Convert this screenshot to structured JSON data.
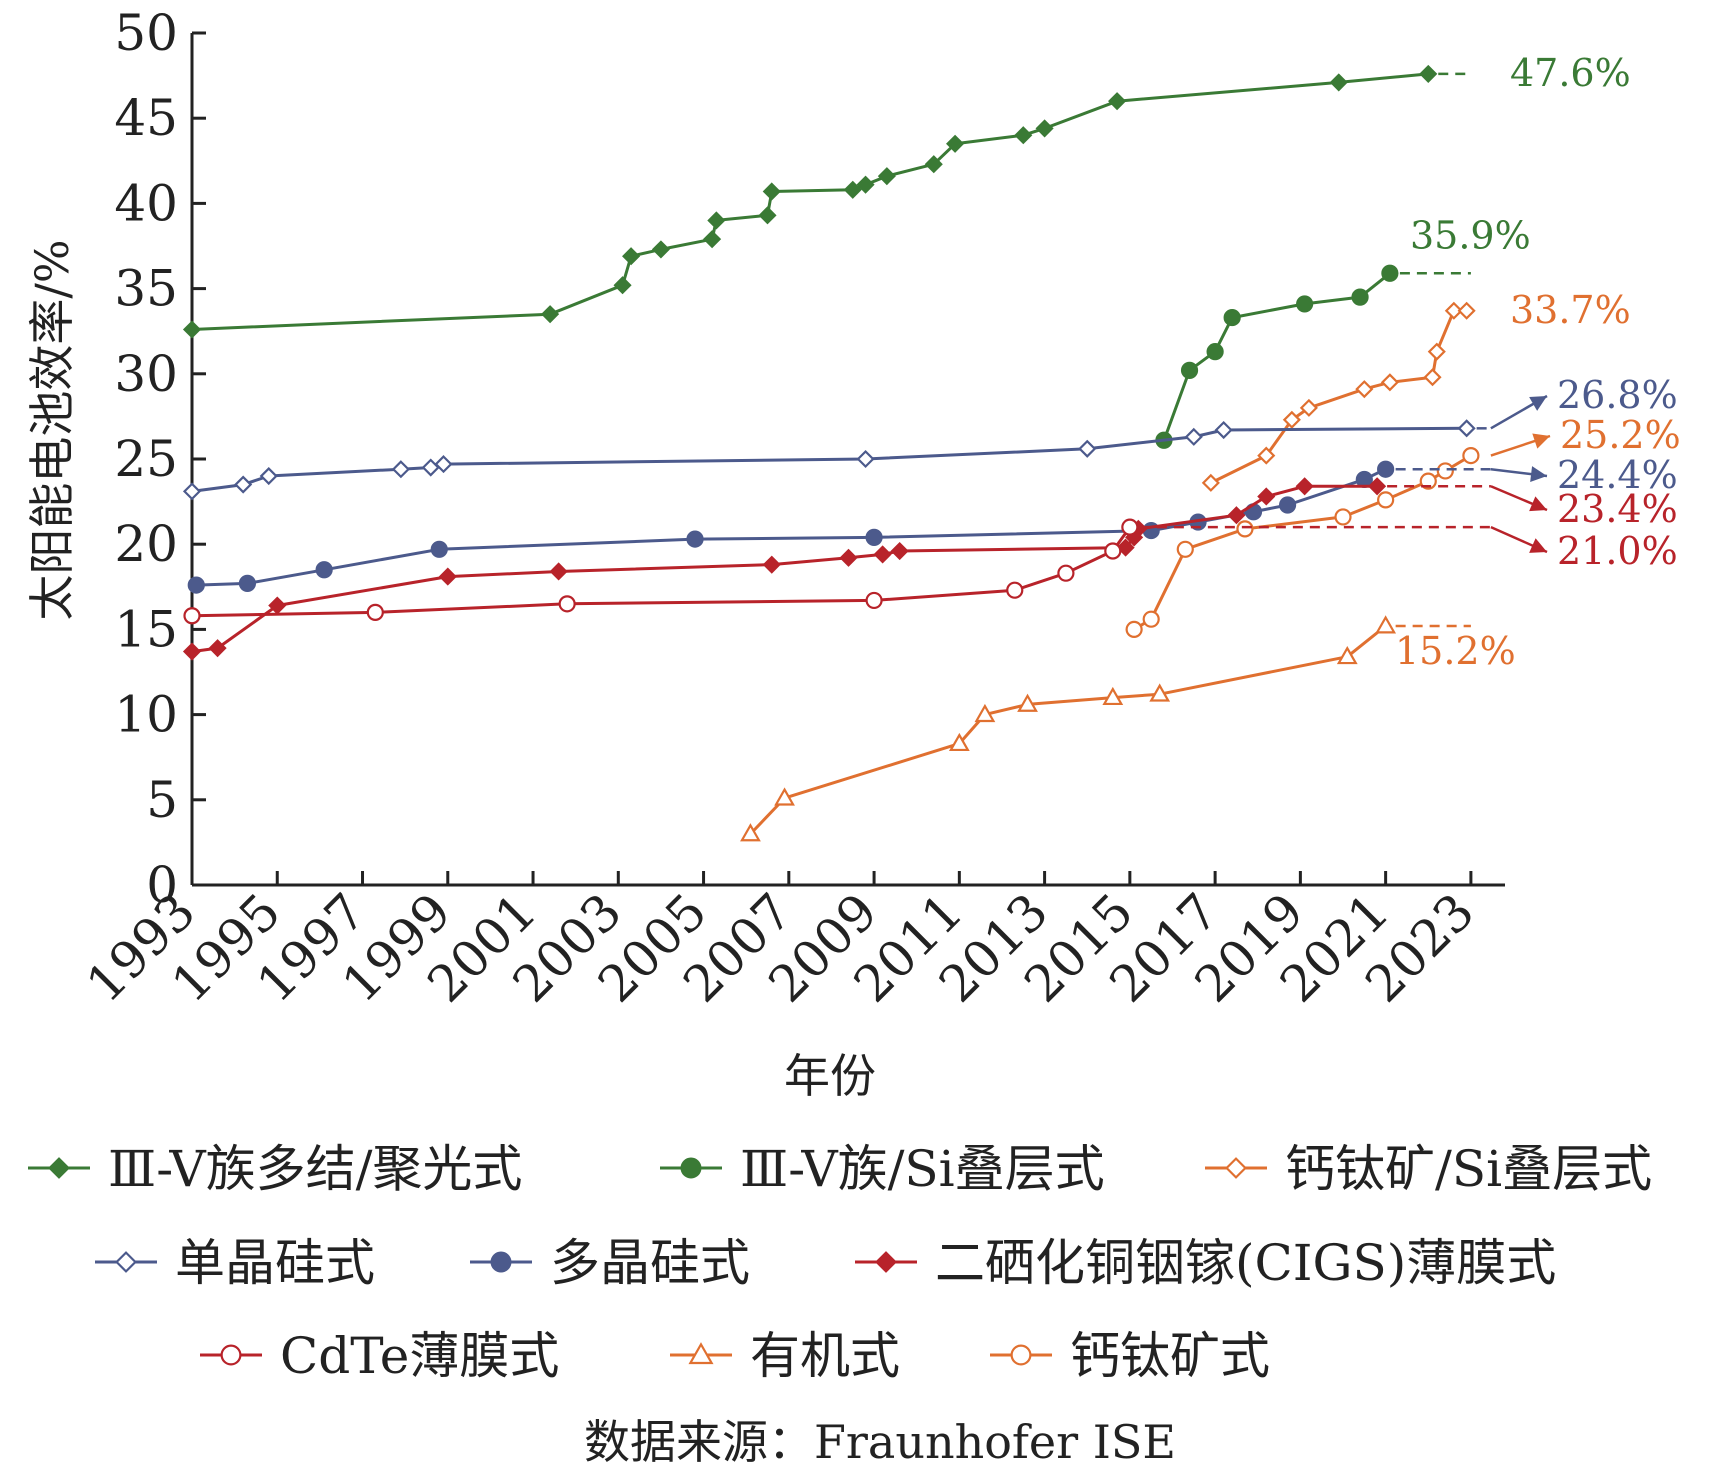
{
  "chart_data": {
    "type": "line",
    "title": "",
    "xlabel": "年份",
    "ylabel": "太阳能电池效率/%",
    "xlim": [
      1993,
      2023.8
    ],
    "ylim": [
      0,
      50
    ],
    "x_ticks": [
      "1993",
      "1995",
      "1997",
      "1999",
      "2001",
      "2003",
      "2005",
      "2007",
      "2009",
      "2011",
      "2013",
      "2015",
      "2017",
      "2019",
      "2021",
      "2023"
    ],
    "y_ticks": [
      "0",
      "5",
      "10",
      "15",
      "20",
      "25",
      "30",
      "35",
      "40",
      "45",
      "50"
    ],
    "legend_position": "bottom",
    "source": "数据来源：Fraunhofer ISE",
    "series": [
      {
        "name": "Ⅲ-V族多结/聚光式",
        "color": "#3a7a35",
        "marker": "diamond-filled",
        "points": [
          [
            1993.0,
            32.6
          ],
          [
            2001.4,
            33.5
          ],
          [
            2003.1,
            35.2
          ],
          [
            2003.3,
            36.9
          ],
          [
            2004.0,
            37.3
          ],
          [
            2005.2,
            37.9
          ],
          [
            2005.3,
            39.0
          ],
          [
            2006.5,
            39.3
          ],
          [
            2006.6,
            40.7
          ],
          [
            2008.5,
            40.8
          ],
          [
            2008.8,
            41.1
          ],
          [
            2009.3,
            41.6
          ],
          [
            2010.4,
            42.3
          ],
          [
            2010.9,
            43.5
          ],
          [
            2012.5,
            44.0
          ],
          [
            2013.0,
            44.4
          ],
          [
            2014.7,
            46.0
          ],
          [
            2019.9,
            47.1
          ],
          [
            2022.0,
            47.6
          ]
        ],
        "end_label": "47.6%",
        "end_value": 47.6
      },
      {
        "name": "Ⅲ-V族/Si叠层式",
        "color": "#3a7a35",
        "marker": "circle-filled",
        "points": [
          [
            2015.8,
            26.1
          ],
          [
            2016.4,
            30.2
          ],
          [
            2017.0,
            31.3
          ],
          [
            2017.4,
            33.3
          ],
          [
            2019.1,
            34.1
          ],
          [
            2020.4,
            34.5
          ],
          [
            2021.1,
            35.9
          ]
        ],
        "end_label": "35.9%",
        "end_value": 35.9
      },
      {
        "name": "钙钛矿/Si叠层式",
        "color": "#e07030",
        "marker": "diamond-open",
        "points": [
          [
            2016.9,
            23.6
          ],
          [
            2018.2,
            25.2
          ],
          [
            2018.8,
            27.3
          ],
          [
            2019.2,
            28.0
          ],
          [
            2020.5,
            29.1
          ],
          [
            2021.1,
            29.5
          ],
          [
            2022.1,
            29.8
          ],
          [
            2022.2,
            31.3
          ],
          [
            2022.6,
            33.7
          ],
          [
            2022.9,
            33.7
          ]
        ],
        "end_label": "33.7%",
        "end_value": 33.7
      },
      {
        "name": "单晶硅式",
        "color": "#4c5a8c",
        "marker": "diamond-open",
        "points": [
          [
            1993.0,
            23.1
          ],
          [
            1994.2,
            23.5
          ],
          [
            1994.8,
            24.0
          ],
          [
            1997.9,
            24.4
          ],
          [
            1998.6,
            24.5
          ],
          [
            1998.9,
            24.7
          ],
          [
            2008.8,
            25.0
          ],
          [
            2014.0,
            25.6
          ],
          [
            2016.5,
            26.3
          ],
          [
            2017.2,
            26.7
          ],
          [
            2022.9,
            26.8
          ]
        ],
        "end_label": "26.8%",
        "end_value": 26.8
      },
      {
        "name": "多晶硅式",
        "color": "#4c5a8c",
        "marker": "circle-filled",
        "points": [
          [
            1993.1,
            17.6
          ],
          [
            1994.3,
            17.7
          ],
          [
            1996.1,
            18.5
          ],
          [
            1998.8,
            19.7
          ],
          [
            2004.8,
            20.3
          ],
          [
            2009.0,
            20.4
          ],
          [
            2015.5,
            20.8
          ],
          [
            2016.6,
            21.3
          ],
          [
            2017.9,
            21.9
          ],
          [
            2018.7,
            22.3
          ],
          [
            2020.5,
            23.8
          ],
          [
            2021.0,
            24.4
          ]
        ],
        "end_label": "24.4%",
        "end_value": 24.4
      },
      {
        "name": "二硒化铜铟镓(CIGS)薄膜式",
        "color": "#b8232a",
        "marker": "diamond-filled",
        "points": [
          [
            1993.0,
            13.7
          ],
          [
            1993.6,
            13.9
          ],
          [
            1995.0,
            16.4
          ],
          [
            1999.0,
            18.1
          ],
          [
            2001.6,
            18.4
          ],
          [
            2006.6,
            18.8
          ],
          [
            2008.4,
            19.2
          ],
          [
            2009.2,
            19.4
          ],
          [
            2009.6,
            19.6
          ],
          [
            2014.9,
            19.8
          ],
          [
            2015.1,
            20.4
          ],
          [
            2015.2,
            20.9
          ],
          [
            2017.5,
            21.7
          ],
          [
            2018.2,
            22.8
          ],
          [
            2019.1,
            23.4
          ],
          [
            2020.8,
            23.4
          ]
        ],
        "end_label": "23.4%",
        "end_value": 23.4
      },
      {
        "name": "CdTe薄膜式",
        "color": "#b8232a",
        "marker": "circle-open",
        "points": [
          [
            1993.0,
            15.8
          ],
          [
            1997.3,
            16.0
          ],
          [
            2001.8,
            16.5
          ],
          [
            2009.0,
            16.7
          ],
          [
            2012.3,
            17.3
          ],
          [
            2013.5,
            18.3
          ],
          [
            2014.6,
            19.6
          ],
          [
            2015.0,
            21.0
          ]
        ],
        "end_label": "21.0%",
        "end_value": 21.0
      },
      {
        "name": "有机式",
        "color": "#e07030",
        "marker": "triangle-open",
        "points": [
          [
            2006.1,
            3.0
          ],
          [
            2006.9,
            5.1
          ],
          [
            2011.0,
            8.3
          ],
          [
            2011.6,
            10.0
          ],
          [
            2012.6,
            10.6
          ],
          [
            2014.6,
            11.0
          ],
          [
            2015.7,
            11.2
          ],
          [
            2020.1,
            13.4
          ],
          [
            2021.0,
            15.2
          ]
        ],
        "end_label": "15.2%",
        "end_value": 15.2
      },
      {
        "name": "钙钛矿式",
        "color": "#e07030",
        "marker": "circle-open",
        "points": [
          [
            2015.1,
            15.0
          ],
          [
            2015.5,
            15.6
          ],
          [
            2016.3,
            19.7
          ],
          [
            2017.7,
            20.9
          ],
          [
            2020.0,
            21.6
          ],
          [
            2021.0,
            22.6
          ],
          [
            2022.0,
            23.7
          ],
          [
            2022.4,
            24.3
          ],
          [
            2023.0,
            25.2
          ]
        ],
        "end_label": "25.2%",
        "end_value": 25.2
      }
    ]
  }
}
